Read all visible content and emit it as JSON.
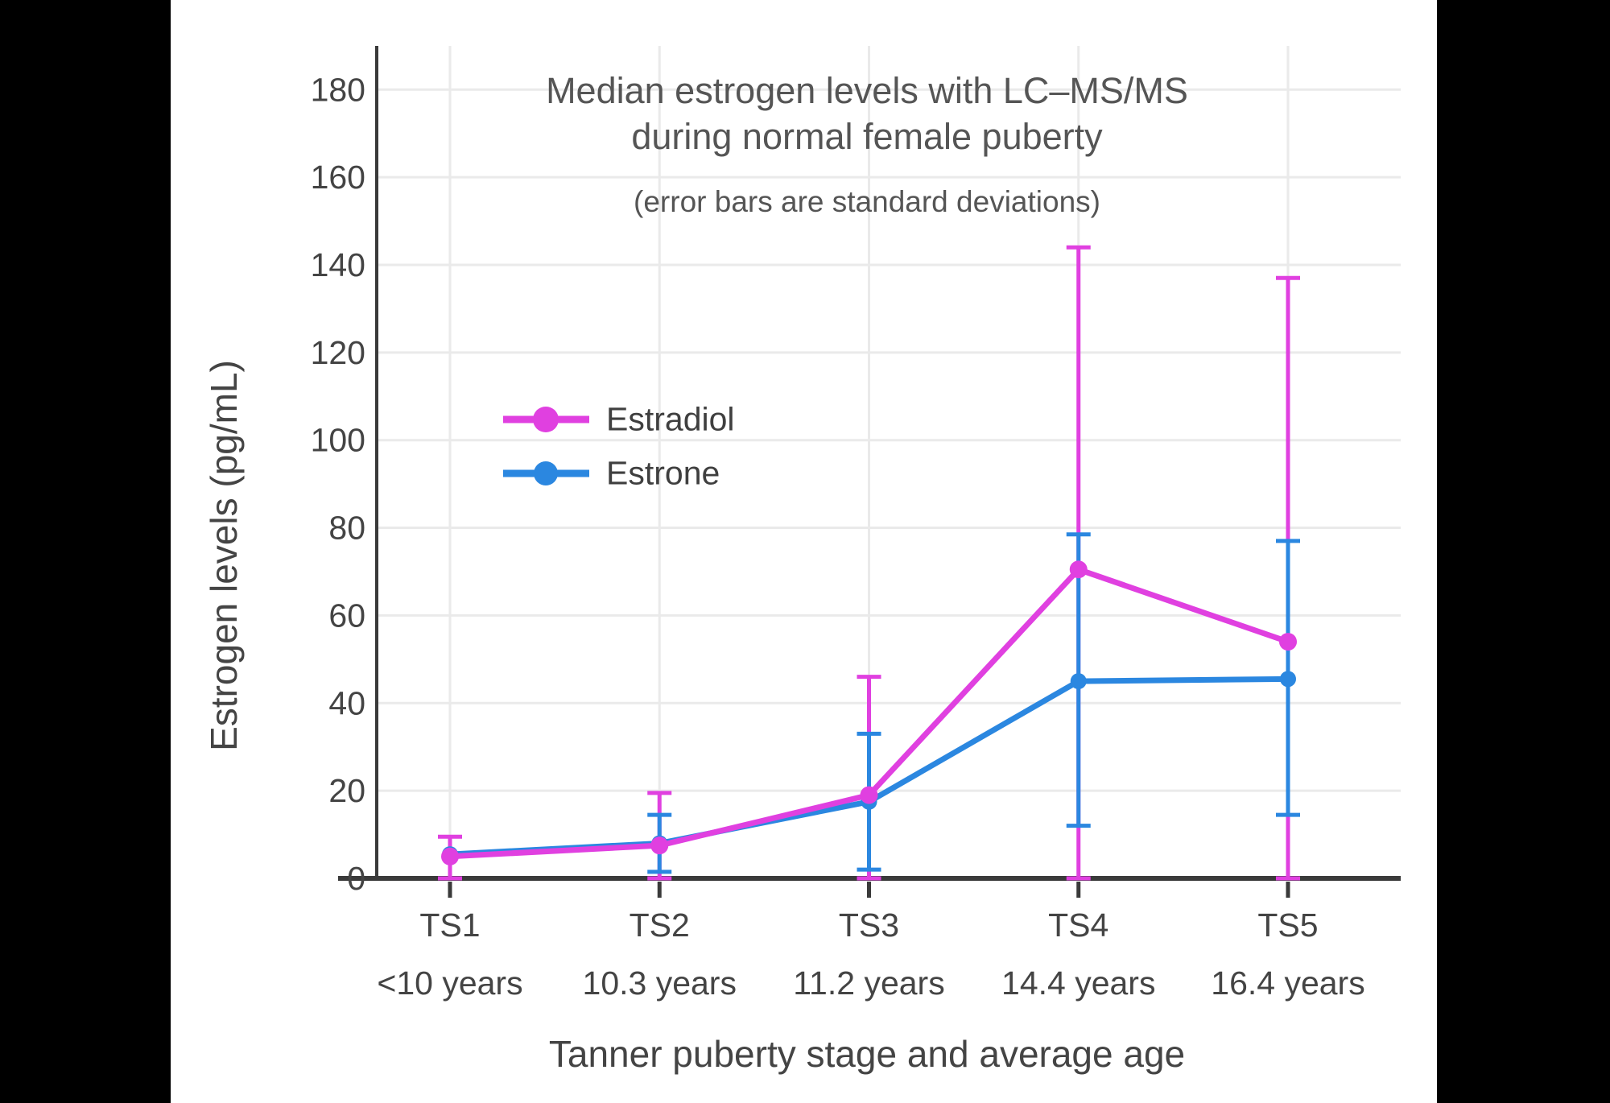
{
  "figure": {
    "title_line1": "Median estrogen levels with LC–MS/MS",
    "title_line2": "during normal female puberty",
    "subtitle": "(error bars are standard deviations)",
    "background_color": "#ffffff",
    "frame_color": "#000000",
    "text_color": "#555555",
    "axis_text_color": "#444444"
  },
  "chart_data": {
    "type": "line",
    "title": "Median estrogen levels with LC–MS/MS during normal female puberty",
    "subtitle": "(error bars are standard deviations)",
    "xlabel": "Tanner puberty stage and average age",
    "ylabel": "Estrogen levels (pg/mL)",
    "ylim": [
      0,
      190
    ],
    "yticks": [
      0,
      20,
      40,
      60,
      80,
      100,
      120,
      140,
      160,
      180
    ],
    "grid": true,
    "grid_color": "#eaeaea",
    "axis_line_color": "#3a3a3a",
    "legend_position": "inside-upper-left",
    "categories": [
      "TS1",
      "TS2",
      "TS3",
      "TS4",
      "TS5"
    ],
    "category_ages": [
      "<10 years",
      "10.3 years",
      "11.2 years",
      "14.4 years",
      "16.4 years"
    ],
    "series": [
      {
        "name": "Estradiol",
        "color": "#E040E0",
        "values": [
          5,
          7.5,
          19,
          70.5,
          54
        ],
        "error_low": [
          0,
          0,
          0,
          0,
          0
        ],
        "error_high": [
          9.5,
          19.5,
          46,
          144,
          137
        ]
      },
      {
        "name": "Estrone",
        "color": "#2B87E0",
        "values": [
          5.5,
          8,
          17.5,
          45,
          45.5
        ],
        "error_low": [
          null,
          1.5,
          2,
          12,
          14.5
        ],
        "error_high": [
          null,
          14.5,
          33,
          78.5,
          77
        ]
      }
    ]
  }
}
